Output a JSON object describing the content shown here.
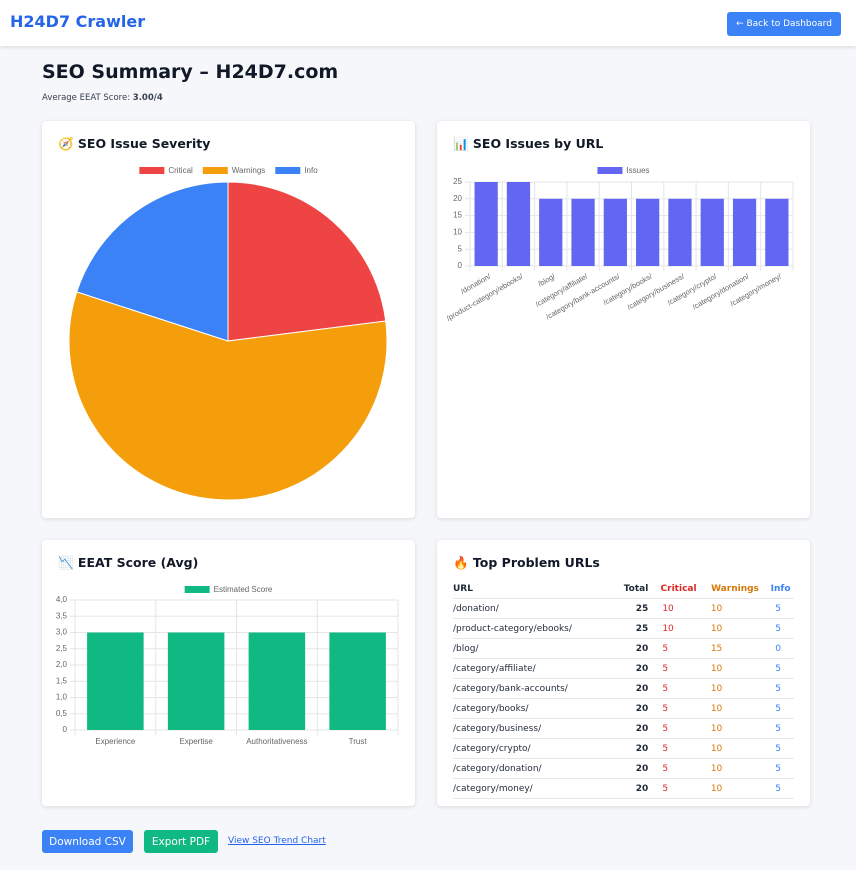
{
  "header": {
    "brand": "H24D7 Crawler",
    "back_button": "← Back to Dashboard"
  },
  "summary": {
    "title": "SEO Summary – H24D7.com",
    "eeat_label": "Average EEAT Score:",
    "eeat_value": "3.00/4"
  },
  "chart_data": [
    {
      "type": "pie",
      "title": "🧭 SEO Issue Severity",
      "categories": [
        "Critical",
        "Warnings",
        "Info"
      ],
      "values": [
        23,
        57,
        20
      ],
      "colors": [
        "#ef4444",
        "#f59e0b",
        "#3b82f6"
      ]
    },
    {
      "type": "bar",
      "title": "📊 SEO Issues by URL",
      "categories": [
        "/donation/",
        "/product-category/ebooks/",
        "/blog/",
        "/category/affiliate/",
        "/category/bank-accounts/",
        "/category/books/",
        "/category/business/",
        "/category/crypto/",
        "/category/donation/",
        "/category/money/"
      ],
      "series": [
        {
          "name": "Issues",
          "color": "#6366f1",
          "values": [
            25,
            25,
            20,
            20,
            20,
            20,
            20,
            20,
            20,
            20
          ]
        }
      ],
      "ylim": [
        0,
        25
      ],
      "yticks": [
        0,
        5,
        10,
        15,
        20,
        25
      ],
      "grid": true
    },
    {
      "type": "bar",
      "title": "📉 EEAT Score (Avg)",
      "categories": [
        "Experience",
        "Expertise",
        "Authoritativeness",
        "Trust"
      ],
      "series": [
        {
          "name": "Estimated Score",
          "color": "#10b981",
          "values": [
            3,
            3,
            3,
            3
          ]
        }
      ],
      "ylim": [
        0,
        4
      ],
      "yticks": [
        0,
        {
          "value": 0.5,
          "label": "0,5"
        },
        {
          "value": 1,
          "label": "1,0"
        },
        {
          "value": 1.5,
          "label": "1,5"
        },
        {
          "value": 2,
          "label": "2,0"
        },
        {
          "value": 2.5,
          "label": "2,5"
        },
        {
          "value": 3,
          "label": "3,0"
        },
        {
          "value": 3.5,
          "label": "3,5"
        },
        {
          "value": 4,
          "label": "4,0"
        }
      ],
      "grid": true
    }
  ],
  "table": {
    "title": "🔥 Top Problem URLs",
    "columns": [
      "URL",
      "Total",
      "Critical",
      "Warnings",
      "Info"
    ],
    "rows": [
      [
        "/donation/",
        25,
        10,
        10,
        5
      ],
      [
        "/product-category/ebooks/",
        25,
        10,
        10,
        5
      ],
      [
        "/blog/",
        20,
        5,
        15,
        0
      ],
      [
        "/category/affiliate/",
        20,
        5,
        10,
        5
      ],
      [
        "/category/bank-accounts/",
        20,
        5,
        10,
        5
      ],
      [
        "/category/books/",
        20,
        5,
        10,
        5
      ],
      [
        "/category/business/",
        20,
        5,
        10,
        5
      ],
      [
        "/category/crypto/",
        20,
        5,
        10,
        5
      ],
      [
        "/category/donation/",
        20,
        5,
        10,
        5
      ],
      [
        "/category/money/",
        20,
        5,
        10,
        5
      ]
    ]
  },
  "actions": {
    "download": "Download CSV",
    "export": "Export PDF",
    "trend": "View SEO Trend Chart"
  }
}
